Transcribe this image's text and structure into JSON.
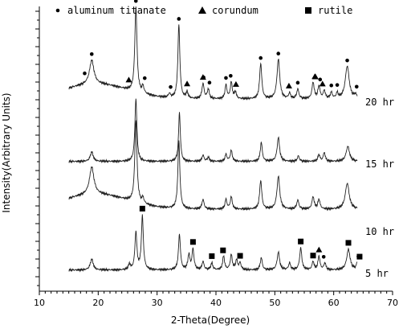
{
  "chart_data": {
    "type": "line",
    "xlabel": "2-Theta(Degree)",
    "ylabel": "Intensity(Arbitrary Units)",
    "xlim": [
      10,
      70
    ],
    "xticks": [
      10,
      20,
      30,
      40,
      50,
      60,
      70
    ],
    "y_ticks_unlabeled": true,
    "legend": {
      "placement": "top",
      "entries": [
        {
          "symbol": "•",
          "label": "aluminum titanate",
          "marker": "dot"
        },
        {
          "symbol": "▲",
          "label": "corundum",
          "marker": "triangle"
        },
        {
          "symbol": "■",
          "label": "rutile",
          "marker": "square"
        }
      ]
    },
    "series": [
      {
        "name": "20 hr",
        "label": "20 hr",
        "range": [
          15,
          64
        ],
        "baseline": 8,
        "hump": true,
        "peaks": [
          {
            "x": 18.9,
            "h": 35,
            "w": 0.45
          },
          {
            "x": 26.4,
            "h": 125,
            "w": 0.22
          },
          {
            "x": 27.6,
            "h": 10,
            "w": 0.2
          },
          {
            "x": 32.1,
            "h": 6,
            "w": 0.2
          },
          {
            "x": 33.7,
            "h": 108,
            "w": 0.2
          },
          {
            "x": 35.1,
            "h": 9,
            "w": 0.2
          },
          {
            "x": 37.8,
            "h": 22,
            "w": 0.22
          },
          {
            "x": 38.7,
            "h": 14,
            "w": 0.2
          },
          {
            "x": 41.7,
            "h": 20,
            "w": 0.2
          },
          {
            "x": 42.6,
            "h": 24,
            "w": 0.2
          },
          {
            "x": 43.3,
            "h": 10,
            "w": 0.2
          },
          {
            "x": 47.6,
            "h": 52,
            "w": 0.22
          },
          {
            "x": 50.6,
            "h": 58,
            "w": 0.28
          },
          {
            "x": 52.5,
            "h": 8,
            "w": 0.2
          },
          {
            "x": 53.9,
            "h": 14,
            "w": 0.22
          },
          {
            "x": 56.5,
            "h": 24,
            "w": 0.22
          },
          {
            "x": 57.5,
            "h": 18,
            "w": 0.22
          },
          {
            "x": 58.4,
            "h": 12,
            "w": 0.2
          },
          {
            "x": 59.6,
            "h": 9,
            "w": 0.2
          },
          {
            "x": 60.6,
            "h": 8,
            "w": 0.2
          },
          {
            "x": 62.3,
            "h": 48,
            "w": 0.4
          },
          {
            "x": 63.7,
            "h": 6,
            "w": 0.2
          }
        ],
        "markers": [
          {
            "x": 17.7,
            "m": "dot"
          },
          {
            "x": 18.9,
            "m": "dot"
          },
          {
            "x": 25.2,
            "m": "triangle"
          },
          {
            "x": 26.4,
            "m": "dot"
          },
          {
            "x": 27.9,
            "m": "dot"
          },
          {
            "x": 32.3,
            "m": "dot"
          },
          {
            "x": 33.7,
            "m": "dot"
          },
          {
            "x": 35.1,
            "m": "triangle"
          },
          {
            "x": 37.8,
            "m": "triangle"
          },
          {
            "x": 37.9,
            "m": "dot"
          },
          {
            "x": 38.9,
            "m": "dot"
          },
          {
            "x": 41.7,
            "m": "dot"
          },
          {
            "x": 42.5,
            "m": "dot"
          },
          {
            "x": 43.4,
            "m": "triangle"
          },
          {
            "x": 47.6,
            "m": "dot"
          },
          {
            "x": 50.6,
            "m": "dot"
          },
          {
            "x": 52.4,
            "m": "triangle"
          },
          {
            "x": 53.9,
            "m": "dot"
          },
          {
            "x": 56.8,
            "m": "triangle"
          },
          {
            "x": 57.7,
            "m": "dot"
          },
          {
            "x": 56.9,
            "m": "triangle"
          },
          {
            "x": 58.1,
            "m": "triangle"
          },
          {
            "x": 59.6,
            "m": "dot"
          },
          {
            "x": 60.6,
            "m": "dot"
          },
          {
            "x": 62.3,
            "m": "dot"
          },
          {
            "x": 63.9,
            "m": "dot"
          }
        ]
      },
      {
        "name": "15 hr",
        "label": "15 hr",
        "range": [
          15,
          64
        ],
        "baseline": 5,
        "hump": false,
        "peaks": [
          {
            "x": 18.9,
            "h": 14,
            "w": 0.3
          },
          {
            "x": 26.4,
            "h": 92,
            "w": 0.2
          },
          {
            "x": 33.8,
            "h": 72,
            "w": 0.18
          },
          {
            "x": 37.8,
            "h": 9,
            "w": 0.2
          },
          {
            "x": 38.7,
            "h": 6,
            "w": 0.2
          },
          {
            "x": 41.7,
            "h": 10,
            "w": 0.2
          },
          {
            "x": 42.6,
            "h": 16,
            "w": 0.2
          },
          {
            "x": 47.7,
            "h": 28,
            "w": 0.2
          },
          {
            "x": 50.6,
            "h": 35,
            "w": 0.25
          },
          {
            "x": 54.0,
            "h": 8,
            "w": 0.2
          },
          {
            "x": 57.5,
            "h": 10,
            "w": 0.2
          },
          {
            "x": 58.4,
            "h": 13,
            "w": 0.2
          },
          {
            "x": 62.4,
            "h": 22,
            "w": 0.35
          }
        ],
        "markers": []
      },
      {
        "name": "10 hr",
        "label": "10 hr",
        "range": [
          15,
          64
        ],
        "baseline": 8,
        "hump": true,
        "peaks": [
          {
            "x": 18.9,
            "h": 40,
            "w": 0.45
          },
          {
            "x": 26.4,
            "h": 120,
            "w": 0.22
          },
          {
            "x": 27.6,
            "h": 8,
            "w": 0.2
          },
          {
            "x": 33.7,
            "h": 100,
            "w": 0.2
          },
          {
            "x": 37.8,
            "h": 14,
            "w": 0.22
          },
          {
            "x": 41.7,
            "h": 14,
            "w": 0.2
          },
          {
            "x": 42.6,
            "h": 18,
            "w": 0.2
          },
          {
            "x": 47.6,
            "h": 42,
            "w": 0.22
          },
          {
            "x": 50.6,
            "h": 48,
            "w": 0.28
          },
          {
            "x": 53.9,
            "h": 13,
            "w": 0.22
          },
          {
            "x": 56.5,
            "h": 18,
            "w": 0.22
          },
          {
            "x": 57.5,
            "h": 14,
            "w": 0.22
          },
          {
            "x": 62.3,
            "h": 38,
            "w": 0.4
          }
        ],
        "markers": []
      },
      {
        "name": "5 hr",
        "label": "5 hr",
        "range": [
          15,
          64
        ],
        "baseline": 5,
        "hump": false,
        "peaks": [
          {
            "x": 18.9,
            "h": 16,
            "w": 0.3
          },
          {
            "x": 25.3,
            "h": 8,
            "w": 0.2
          },
          {
            "x": 26.4,
            "h": 55,
            "w": 0.2
          },
          {
            "x": 27.5,
            "h": 78,
            "w": 0.2
          },
          {
            "x": 33.8,
            "h": 52,
            "w": 0.2
          },
          {
            "x": 35.4,
            "h": 22,
            "w": 0.2
          },
          {
            "x": 36.1,
            "h": 30,
            "w": 0.2
          },
          {
            "x": 37.8,
            "h": 12,
            "w": 0.2
          },
          {
            "x": 39.3,
            "h": 10,
            "w": 0.2
          },
          {
            "x": 41.3,
            "h": 20,
            "w": 0.2
          },
          {
            "x": 42.6,
            "h": 22,
            "w": 0.2
          },
          {
            "x": 43.5,
            "h": 14,
            "w": 0.2
          },
          {
            "x": 44.1,
            "h": 10,
            "w": 0.2
          },
          {
            "x": 47.7,
            "h": 18,
            "w": 0.2
          },
          {
            "x": 50.6,
            "h": 26,
            "w": 0.25
          },
          {
            "x": 52.5,
            "h": 10,
            "w": 0.2
          },
          {
            "x": 54.4,
            "h": 32,
            "w": 0.22
          },
          {
            "x": 56.5,
            "h": 12,
            "w": 0.2
          },
          {
            "x": 57.5,
            "h": 20,
            "w": 0.2
          },
          {
            "x": 58.5,
            "h": 10,
            "w": 0.2
          },
          {
            "x": 62.5,
            "h": 30,
            "w": 0.35
          },
          {
            "x": 64.0,
            "h": 10,
            "w": 0.2
          }
        ],
        "markers": [
          {
            "x": 27.5,
            "m": "square"
          },
          {
            "x": 36.1,
            "m": "square"
          },
          {
            "x": 39.3,
            "m": "square"
          },
          {
            "x": 39.2,
            "m": "dot"
          },
          {
            "x": 41.2,
            "m": "square"
          },
          {
            "x": 44.1,
            "m": "square"
          },
          {
            "x": 54.3,
            "m": "dot"
          },
          {
            "x": 54.4,
            "m": "square"
          },
          {
            "x": 56.5,
            "m": "square"
          },
          {
            "x": 57.5,
            "m": "triangle"
          },
          {
            "x": 58.3,
            "m": "dot"
          },
          {
            "x": 62.4,
            "m": "dot"
          },
          {
            "x": 62.5,
            "m": "square"
          },
          {
            "x": 64.2,
            "m": "dot"
          },
          {
            "x": 64.4,
            "m": "square"
          }
        ]
      }
    ]
  }
}
